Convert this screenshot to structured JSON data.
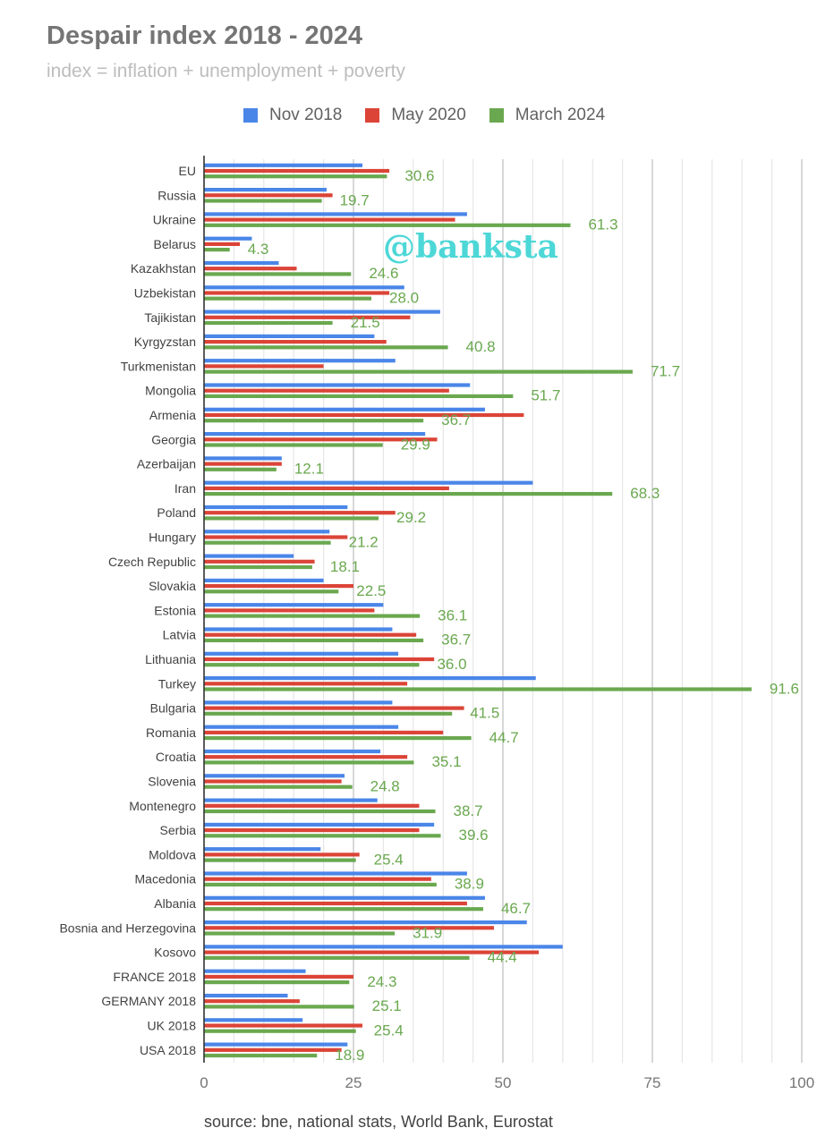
{
  "chart_data": {
    "type": "bar",
    "orientation": "horizontal",
    "title": "Despair index 2018 - 2024",
    "subtitle": "index = inflation + unemployment + poverty",
    "xlim": [
      0,
      100
    ],
    "x_ticks": [
      "0",
      "25",
      "50",
      "75",
      "100"
    ],
    "grid": true,
    "legend_position": "top",
    "categories": [
      "EU",
      "Russia",
      "Ukraine",
      "Belarus",
      "Kazakhstan",
      "Uzbekistan",
      "Tajikistan",
      "Kyrgyzstan",
      "Turkmenistan",
      "Mongolia",
      "Armenia",
      "Georgia",
      "Azerbaijan",
      "Iran",
      "Poland",
      "Hungary",
      "Czech Republic",
      "Slovakia",
      "Estonia",
      "Latvia",
      "Lithuania",
      "Turkey",
      "Bulgaria",
      "Romania",
      "Croatia",
      "Slovenia",
      "Montenegro",
      "Serbia",
      "Moldova",
      "Macedonia",
      "Albania",
      "Bosnia and Herzegovina",
      "Kosovo",
      "FRANCE 2018",
      "GERMANY  2018",
      "UK  2018",
      "USA 2018"
    ],
    "series": [
      {
        "name": "Nov 2018",
        "color": "#4a86e8",
        "values": [
          26.5,
          20.5,
          44,
          8,
          12.5,
          33.5,
          39.5,
          28.5,
          32,
          44.5,
          47,
          37,
          13,
          55,
          24,
          21,
          15,
          20,
          30,
          31.5,
          32.5,
          55.5,
          31.5,
          32.5,
          29.5,
          23.5,
          29,
          38.5,
          19.5,
          44,
          47,
          54,
          60,
          17,
          14,
          16.5,
          24
        ]
      },
      {
        "name": "May 2020",
        "color": "#db4437",
        "values": [
          31,
          21.5,
          42,
          6,
          15.5,
          31,
          34.5,
          30.5,
          20,
          41,
          53.5,
          39,
          13,
          41,
          32,
          24,
          18.5,
          25,
          28.5,
          35.5,
          38.5,
          34,
          43.5,
          40,
          34,
          23,
          36,
          36,
          26,
          38,
          44,
          48.5,
          56,
          25,
          16,
          26.5,
          23
        ]
      },
      {
        "name": "March 2024",
        "color": "#6aa84f",
        "values": [
          30.6,
          19.7,
          61.3,
          4.3,
          24.6,
          28.0,
          21.5,
          40.8,
          71.7,
          51.7,
          36.7,
          29.9,
          12.1,
          68.3,
          29.2,
          21.2,
          18.1,
          22.5,
          36.1,
          36.7,
          36.0,
          91.6,
          41.5,
          44.7,
          35.1,
          24.8,
          38.7,
          39.6,
          25.4,
          38.9,
          46.7,
          31.9,
          44.4,
          24.3,
          25.1,
          25.4,
          18.9
        ]
      }
    ],
    "data_labels": [
      "30.6",
      "19.7",
      "61.3",
      "4.3",
      "24.6",
      "28.0",
      "21.5",
      "40.8",
      "71.7",
      "51.7",
      "36.7",
      "29.9",
      "12.1",
      "68.3",
      "29.2",
      "21.2",
      "18.1",
      "22.5",
      "36.1",
      "36.7",
      "36.0",
      "91.6",
      "41.5",
      "44.7",
      "35.1",
      "24.8",
      "38.7",
      "39.6",
      "25.4",
      "38.9",
      "46.7",
      "31.9",
      "44.4",
      "24.3",
      "25.1",
      "25.4",
      "18.9"
    ]
  },
  "watermark": "@banksta",
  "source": "source: bne, national stats, World Bank, Eurostat"
}
